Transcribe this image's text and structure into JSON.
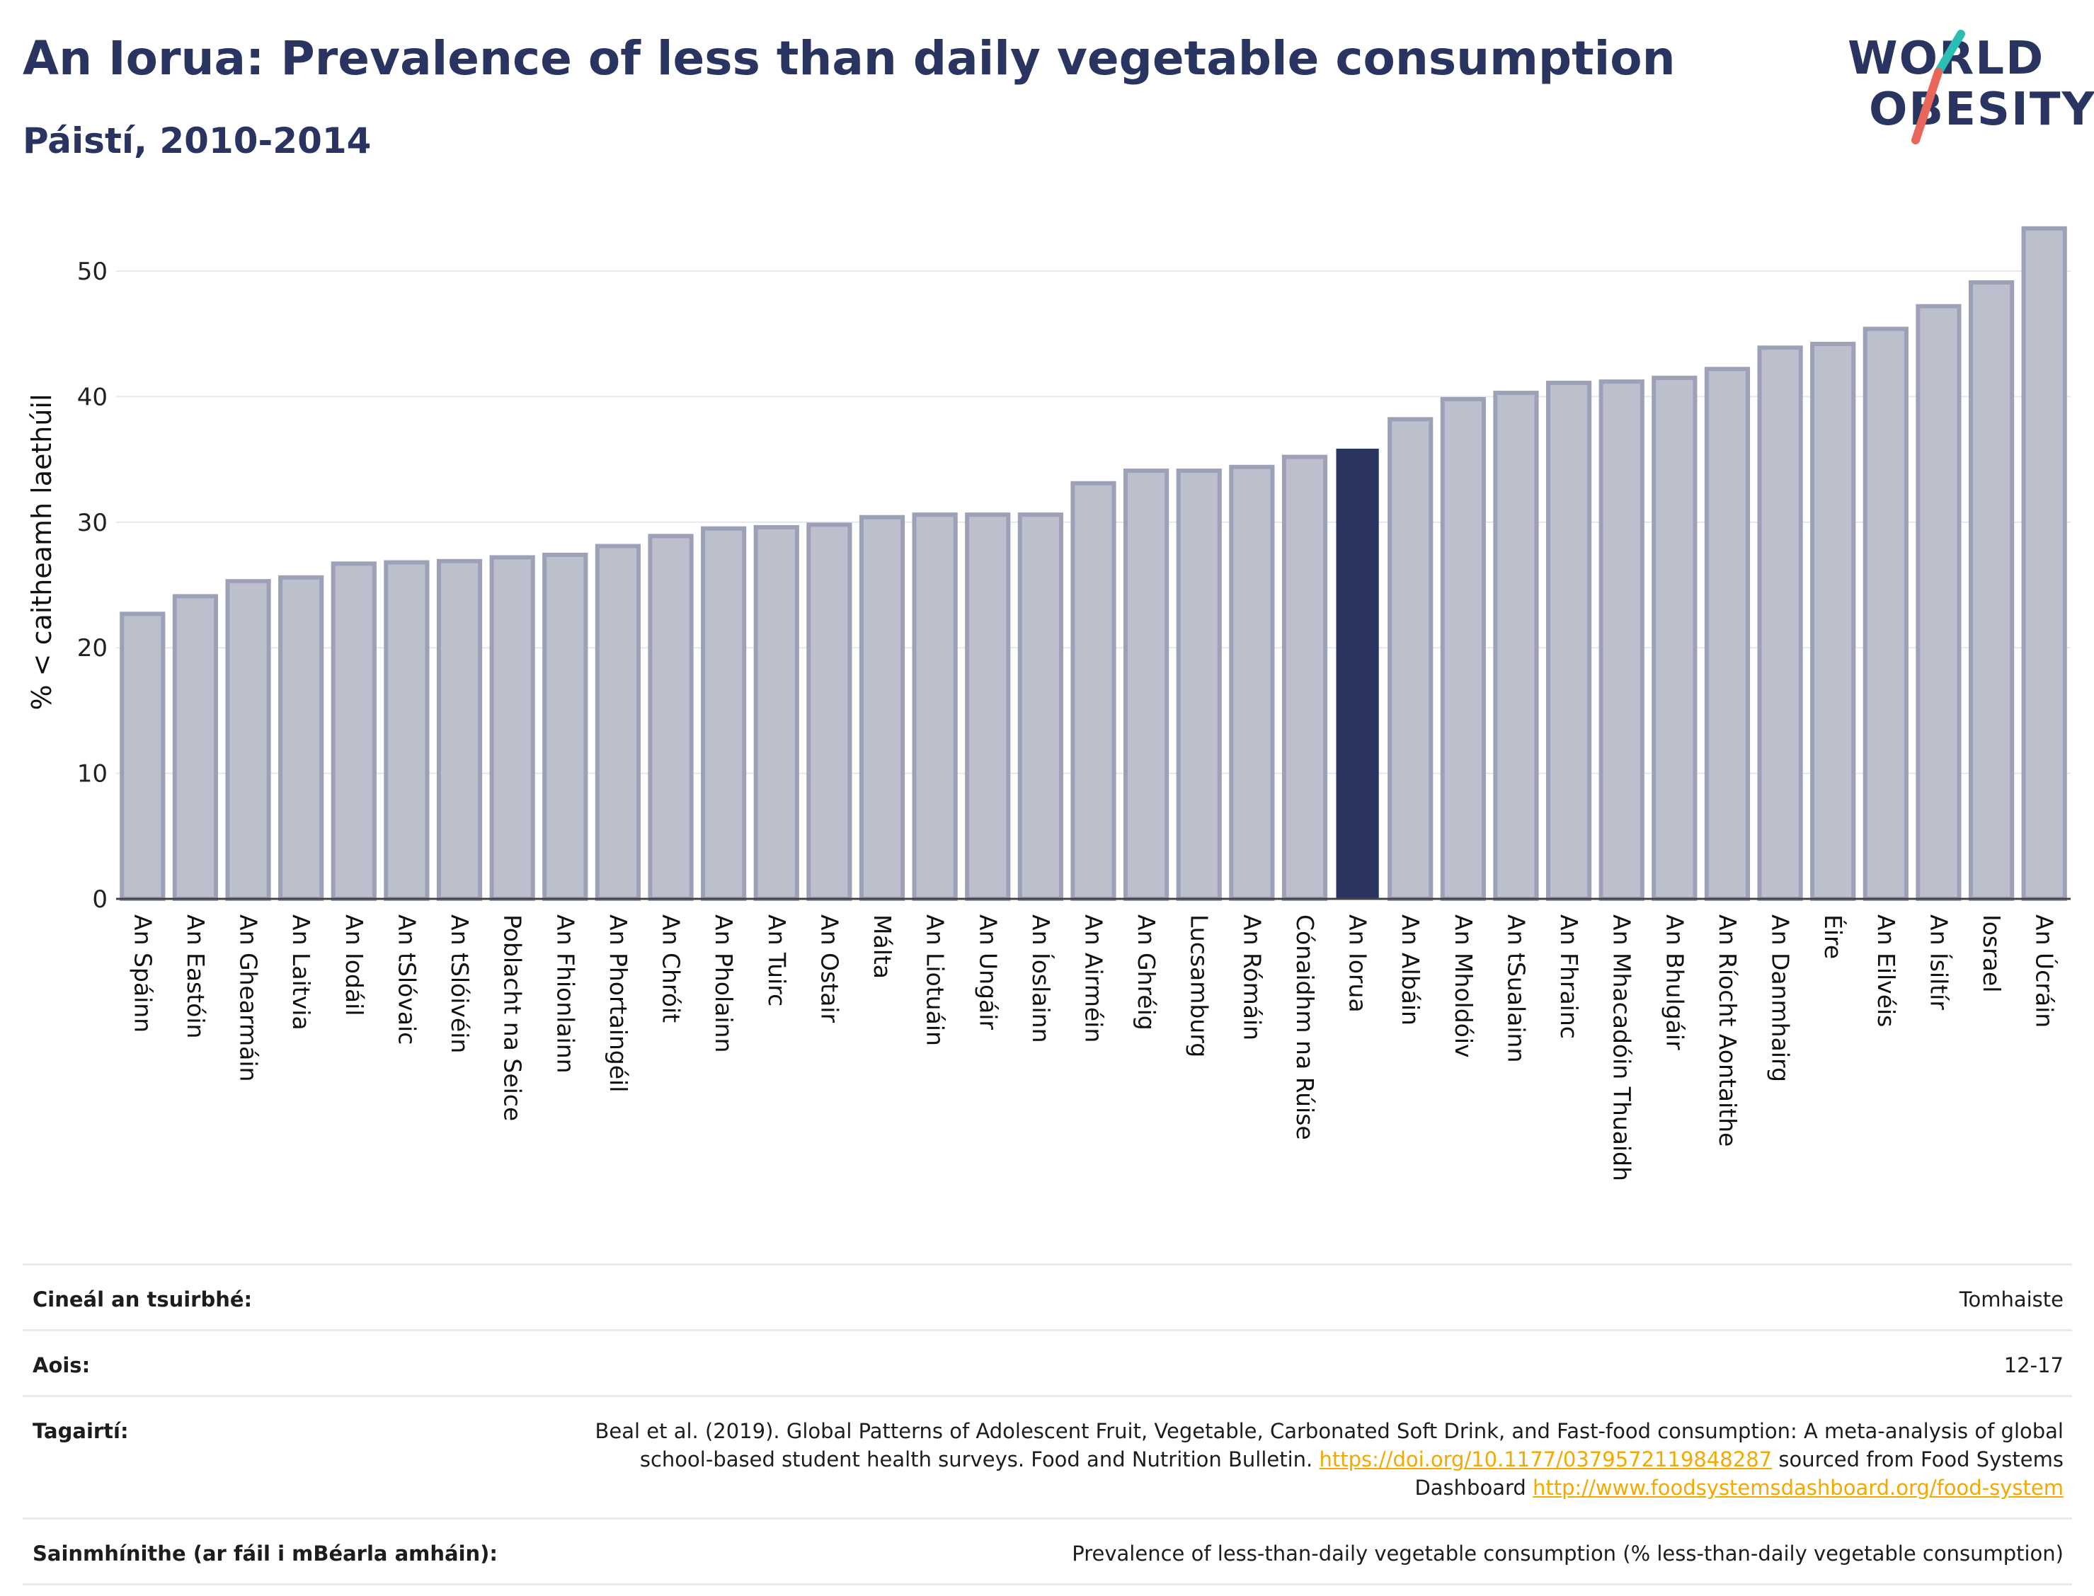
{
  "header": {
    "title": "An Iorua: Prevalence of less than daily vegetable consumption",
    "subtitle": "Páistí, 2010-2014"
  },
  "logo": {
    "line1": "WORLD",
    "line2": "OBESITY",
    "colors": {
      "navy": "#2a3461",
      "teal": "#2bbfb3",
      "coral": "#e8665a"
    }
  },
  "colors": {
    "bar": "#bcc0cd",
    "bar_border": "#9ca1b8",
    "highlight": "#2a3461"
  },
  "chart_data": {
    "type": "bar",
    "title": "An Iorua: Prevalence of less than daily vegetable consumption",
    "subtitle": "Páistí, 2010-2014",
    "xlabel": "",
    "ylabel": "% < caitheamh laethúil",
    "ylim": [
      0,
      55
    ],
    "yticks": [
      0,
      10,
      20,
      30,
      40,
      50
    ],
    "grid": true,
    "highlight": "An Iorua",
    "categories": [
      "An Spáinn",
      "An Eastóin",
      "An Ghearmáin",
      "An Laitvia",
      "An Iodáil",
      "An tSlóvaic",
      "An tSlóivéin",
      "Poblacht na Seice",
      "An Fhionlainn",
      "An Phortaingéil",
      "An Chróit",
      "An Pholainn",
      "An Tuirc",
      "An Ostair",
      "Málta",
      "An Liotuáin",
      "An Ungáir",
      "An Íoslainn",
      "An Airméin",
      "An Ghréig",
      "Lucsamburg",
      "An Rómáin",
      "Cónaidhm na Rúise",
      "An Iorua",
      "An Albáin",
      "An Mholdóiv",
      "An tSualainn",
      "An Fhrainc",
      "An Mhacadóin Thuaidh",
      "An Bhulgáir",
      "An Ríocht Aontaithe",
      "An Danmhairg",
      "Éire",
      "An Eilvéis",
      "An Ísiltír",
      "Iosrael",
      "An Úcráin"
    ],
    "values": [
      22.7,
      24.1,
      25.3,
      25.6,
      26.7,
      26.8,
      26.9,
      27.2,
      27.4,
      28.1,
      28.9,
      29.5,
      29.6,
      29.8,
      30.4,
      30.6,
      30.6,
      30.6,
      33.1,
      34.1,
      34.1,
      34.4,
      35.2,
      35.8,
      38.2,
      39.8,
      40.3,
      41.1,
      41.2,
      41.5,
      42.2,
      43.9,
      44.2,
      45.4,
      47.2,
      49.1,
      53.4
    ]
  },
  "meta": {
    "survey_type_label": "Cineál an tsuirbhé:",
    "survey_type_value": "Tomhaiste",
    "age_label": "Aois:",
    "age_value": "12-17",
    "refs_label": "Tagairtí:",
    "refs_text1": "Beal et al. (2019). Global Patterns of Adolescent Fruit, Vegetable, Carbonated Soft Drink, and Fast-food consumption: A meta-analysis of global school-based student health surveys. Food and Nutrition Bulletin.",
    "refs_link1": "https://doi.org/10.1177/0379572119848287",
    "refs_text2": "sourced from Food Systems Dashboard",
    "refs_link2": "http://www.foodsystemsdashboard.org/food-system",
    "defs_label": "Sainmhínithe (ar fáil i mBéarla amháin):",
    "defs_value": "Prevalence of less-than-daily vegetable consumption (% less-than-daily vegetable consumption)"
  }
}
